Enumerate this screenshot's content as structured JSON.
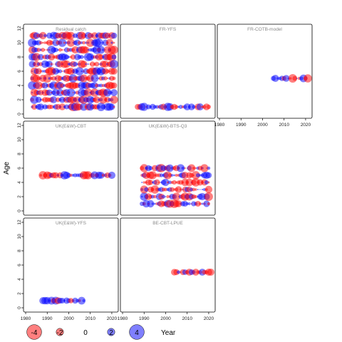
{
  "chart_data": {
    "type": "scatter",
    "ylabel": "Age",
    "legend_title": "Year",
    "legend": [
      {
        "label": "-4",
        "value": -4,
        "color": "#ff0000"
      },
      {
        "label": "-2",
        "value": -2,
        "color": "#ff0000"
      },
      {
        "label": "0",
        "value": 0,
        "color": ""
      },
      {
        "label": "2",
        "value": 2,
        "color": "#0000ff"
      },
      {
        "label": "4",
        "value": 4,
        "color": "#0000ff"
      }
    ],
    "colors": {
      "negative": "#ff0000",
      "positive": "#0000ff",
      "frame": "#000000"
    },
    "xlim": [
      1979,
      2023
    ],
    "ylim": [
      -0.6,
      12.6
    ],
    "xticks": [
      1980,
      1990,
      2000,
      2010,
      2020
    ],
    "yticks": [
      0,
      2,
      4,
      6,
      8,
      10,
      12
    ],
    "panels": [
      {
        "title": "Residual catch",
        "years": [
          1983,
          2021
        ],
        "ages": [
          1,
          2,
          3,
          4,
          5,
          6,
          7,
          8,
          9,
          10,
          11
        ]
      },
      {
        "title": "FR-YFS",
        "years": [
          1987,
          2020
        ],
        "ages": [
          1
        ]
      },
      {
        "title": "FR-COTB-model",
        "years": [
          2005,
          2021
        ],
        "ages": [
          5
        ]
      },
      {
        "title": "UK(E&W)-CBT",
        "years": [
          1987,
          2020
        ],
        "ages": [
          5
        ]
      },
      {
        "title": "UK(E&W)-BTS-Q3",
        "years": [
          1989,
          2020
        ],
        "ages": [
          1,
          2,
          3,
          4,
          5,
          6
        ]
      },
      {
        "title": "UK(E&W)-YFS",
        "years": [
          1988,
          2007
        ],
        "ages": [
          1
        ]
      },
      {
        "title": "BE-CBT-LPUE",
        "years": [
          2004,
          2021
        ],
        "ages": [
          5
        ]
      }
    ]
  }
}
